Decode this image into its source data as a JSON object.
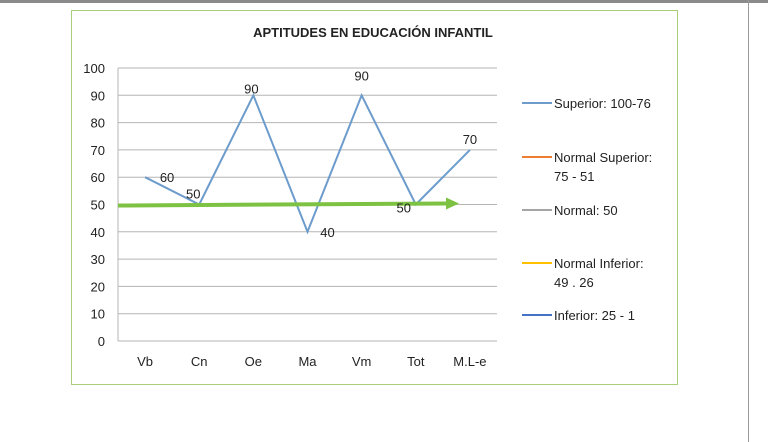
{
  "chart_data": {
    "type": "line",
    "title": "APTITUDES EN EDUCACIÓN INFANTIL",
    "categories": [
      "Vb",
      "Cn",
      "Oe",
      "Ma",
      "Vm",
      "Tot",
      "M.L-e"
    ],
    "series": [
      {
        "name": "Superior: 100-76",
        "color": "#6d9ccc",
        "values": [
          60,
          50,
          90,
          40,
          90,
          50,
          70
        ],
        "data_labels": [
          "60",
          "50",
          "90",
          "40",
          "90",
          "50",
          "70"
        ]
      }
    ],
    "legend": [
      {
        "label": "Superior: 100-76",
        "color": "#6d9ccc"
      },
      {
        "label_lines": [
          "Normal Superior:",
          "75 - 51"
        ],
        "color": "#ed7d31"
      },
      {
        "label": "Normal: 50",
        "color": "#a5a5a5"
      },
      {
        "label_lines": [
          "Normal Inferior:",
          "49 . 26"
        ],
        "color": "#ffc000"
      },
      {
        "label": "Inferior: 25 - 1",
        "color": "#4472c4"
      }
    ],
    "legend_position": "right",
    "reference_arrow": {
      "value": 50,
      "color": "#7dc242"
    },
    "ylim": [
      0,
      100
    ],
    "yticks": [
      "0",
      "10",
      "20",
      "30",
      "40",
      "50",
      "60",
      "70",
      "80",
      "90",
      "100"
    ],
    "grid": true,
    "xlabel": "",
    "ylabel": ""
  }
}
